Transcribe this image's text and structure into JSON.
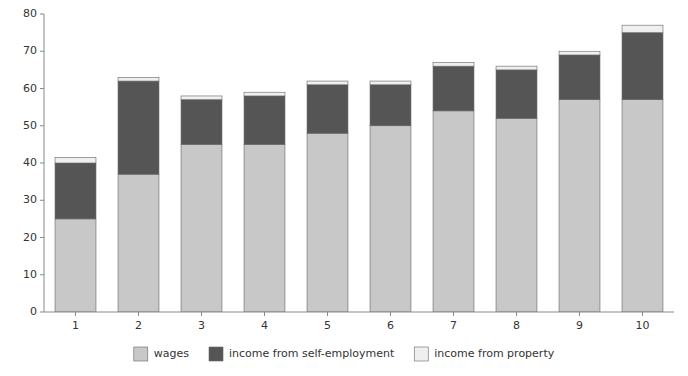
{
  "chart_data": {
    "type": "bar",
    "stacked": true,
    "categories": [
      1,
      2,
      3,
      4,
      5,
      6,
      7,
      8,
      9,
      10
    ],
    "series": [
      {
        "name": "wages",
        "color": "#c8c8c8",
        "values": [
          25,
          37,
          45,
          45,
          48,
          50,
          54,
          52,
          57,
          57
        ]
      },
      {
        "name": "income from self-employment",
        "color": "#555555",
        "values": [
          15,
          25,
          12,
          13,
          13,
          11,
          12,
          13,
          12,
          18
        ]
      },
      {
        "name": "income from property",
        "color": "#efefef",
        "values": [
          1.5,
          1.0,
          1.0,
          1.0,
          1.0,
          1.0,
          1.0,
          1.0,
          1.0,
          2.0
        ]
      }
    ],
    "ylim": [
      0,
      80
    ],
    "yticks": [
      0,
      10,
      20,
      30,
      40,
      50,
      60,
      70,
      80
    ],
    "grid": false,
    "legend": "bottom"
  }
}
